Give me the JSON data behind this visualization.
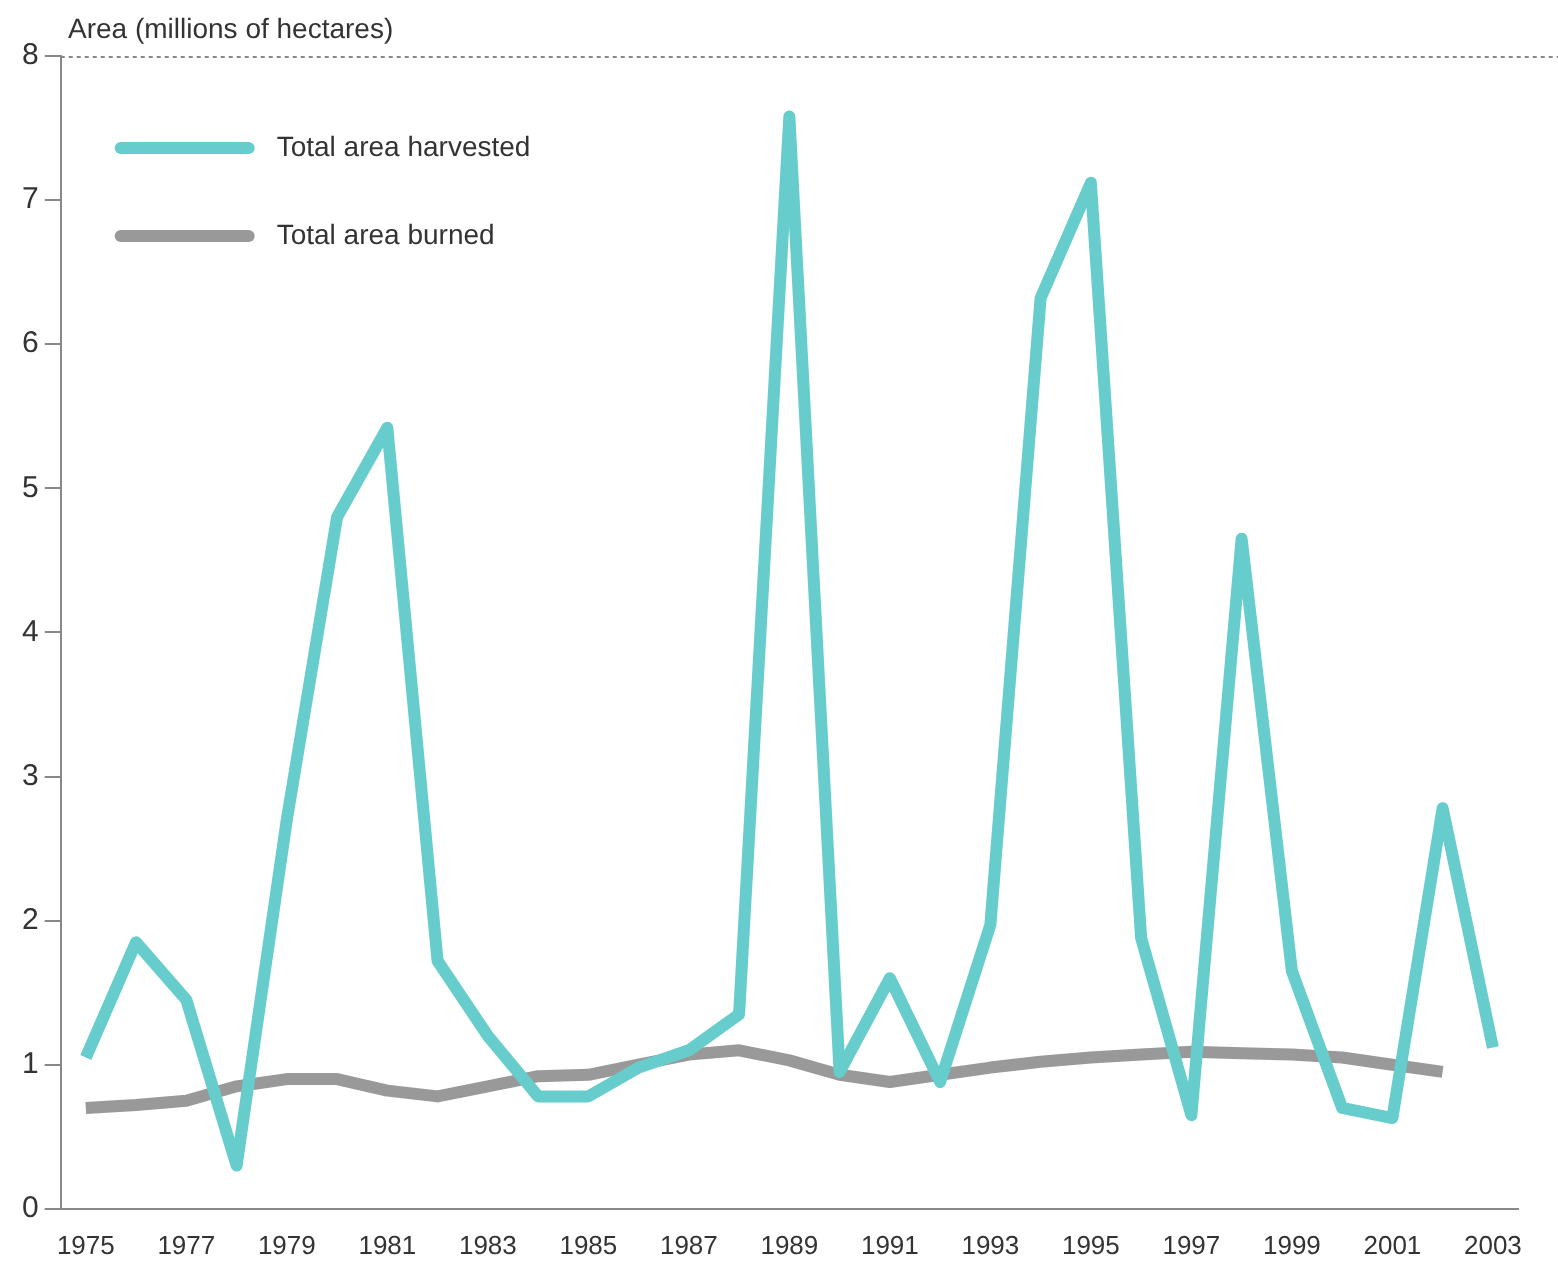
{
  "chart_data": {
    "type": "line",
    "ylabel": "Area (millions of hectares)",
    "categories": [
      "1975",
      null,
      "1977",
      null,
      "1979",
      null,
      "1981",
      null,
      "1983",
      null,
      "1985",
      null,
      "1987",
      null,
      "1989",
      null,
      "1991",
      null,
      "1993",
      null,
      "1995",
      null,
      "1997",
      null,
      "1999",
      null,
      "2001",
      null,
      "2003"
    ],
    "series": [
      {
        "name": "Total area harvested",
        "color": "#66cccc",
        "values": [
          1.05,
          1.85,
          1.45,
          0.3,
          2.7,
          4.8,
          5.42,
          1.72,
          1.2,
          0.78,
          0.78,
          0.98,
          1.1,
          1.35,
          7.58,
          0.95,
          1.6,
          0.88,
          1.97,
          6.32,
          7.12,
          1.88,
          0.65,
          4.65,
          1.65,
          0.7,
          0.63,
          2.78,
          1.12
        ]
      },
      {
        "name": "Total area burned",
        "color": "#999999",
        "values": [
          0.7,
          0.72,
          0.75,
          0.85,
          0.9,
          0.9,
          0.82,
          0.78,
          0.85,
          0.92,
          0.93,
          1.0,
          1.07,
          1.1,
          1.03,
          0.93,
          0.88,
          0.93,
          0.98,
          1.02,
          1.05,
          1.07,
          1.09,
          1.08,
          1.07,
          1.05,
          1.0,
          0.95,
          null
        ]
      }
    ],
    "ylim": [
      0,
      8
    ],
    "yticks": [
      0,
      1,
      2,
      3,
      4,
      5,
      6,
      7,
      8
    ],
    "grid": false,
    "legend": "top left",
    "marker": "none",
    "line_style": "solid"
  }
}
